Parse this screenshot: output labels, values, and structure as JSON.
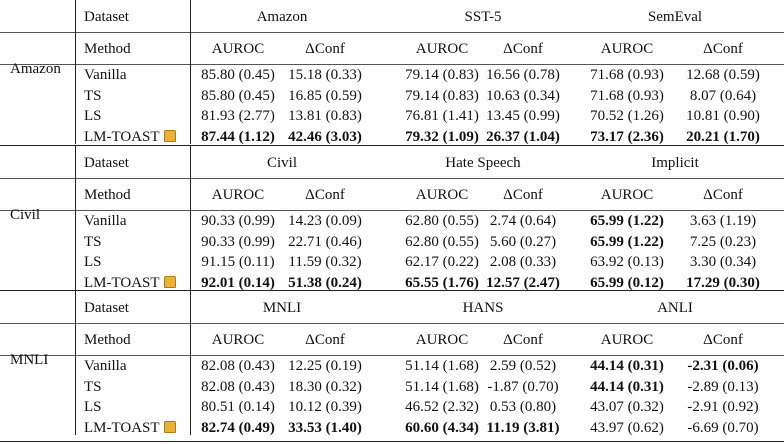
{
  "labels": {
    "dataset": "Dataset",
    "method": "Method",
    "auroc": "AUROC",
    "dconf": "ΔConf"
  },
  "groups": [
    {
      "name": "Amazon",
      "datasets": [
        "Amazon",
        "SST-5",
        "SemEval"
      ],
      "rows": [
        {
          "method": "Vanilla",
          "cells": [
            [
              "85.80 (0.45)",
              0
            ],
            [
              "15.18 (0.33)",
              0
            ],
            [
              "79.14 (0.83)",
              0
            ],
            [
              "16.56 (0.78)",
              0
            ],
            [
              "71.68 (0.93)",
              0
            ],
            [
              "12.68 (0.59)",
              0
            ]
          ]
        },
        {
          "method": "TS",
          "cells": [
            [
              "85.80 (0.45)",
              0
            ],
            [
              "16.85 (0.59)",
              0
            ],
            [
              "79.14 (0.83)",
              0
            ],
            [
              "10.63 (0.34)",
              0
            ],
            [
              "71.68 (0.93)",
              0
            ],
            [
              "8.07 (0.64)",
              0
            ]
          ]
        },
        {
          "method": "LS",
          "cells": [
            [
              "81.93 (2.77)",
              0
            ],
            [
              "13.81 (0.83)",
              0
            ],
            [
              "76.81 (1.41)",
              0
            ],
            [
              "13.45 (0.99)",
              0
            ],
            [
              "70.52 (1.26)",
              0
            ],
            [
              "10.81 (0.90)",
              0
            ]
          ]
        },
        {
          "method": "LM-TOAST",
          "icon": "toast-icon",
          "cells": [
            [
              "87.44 (1.12)",
              1
            ],
            [
              "42.46 (3.03)",
              1
            ],
            [
              "79.32 (1.09)",
              1
            ],
            [
              "26.37 (1.04)",
              1
            ],
            [
              "73.17 (2.36)",
              1
            ],
            [
              "20.21 (1.70)",
              1
            ]
          ]
        }
      ]
    },
    {
      "name": "Civil",
      "datasets": [
        "Civil",
        "Hate Speech",
        "Implicit"
      ],
      "rows": [
        {
          "method": "Vanilla",
          "cells": [
            [
              "90.33 (0.99)",
              0
            ],
            [
              "14.23 (0.09)",
              0
            ],
            [
              "62.80 (0.55)",
              0
            ],
            [
              "2.74 (0.64)",
              0
            ],
            [
              "65.99 (1.22)",
              1
            ],
            [
              "3.63 (1.19)",
              0
            ]
          ]
        },
        {
          "method": "TS",
          "cells": [
            [
              "90.33 (0.99)",
              0
            ],
            [
              "22.71 (0.46)",
              0
            ],
            [
              "62.80 (0.55)",
              0
            ],
            [
              "5.60 (0.27)",
              0
            ],
            [
              "65.99 (1.22)",
              1
            ],
            [
              "7.25 (0.23)",
              0
            ]
          ]
        },
        {
          "method": "LS",
          "cells": [
            [
              "91.15 (0.11)",
              0
            ],
            [
              "11.59 (0.32)",
              0
            ],
            [
              "62.17 (0.22)",
              0
            ],
            [
              "2.08 (0.33)",
              0
            ],
            [
              "63.92 (0.13)",
              0
            ],
            [
              "3.30 (0.34)",
              0
            ]
          ]
        },
        {
          "method": "LM-TOAST",
          "icon": "toast-icon",
          "cells": [
            [
              "92.01 (0.14)",
              1
            ],
            [
              "51.38 (0.24)",
              1
            ],
            [
              "65.55 (1.76)",
              1
            ],
            [
              "12.57 (2.47)",
              1
            ],
            [
              "65.99 (0.12)",
              1
            ],
            [
              "17.29 (0.30)",
              1
            ]
          ]
        }
      ]
    },
    {
      "name": "MNLI",
      "datasets": [
        "MNLI",
        "HANS",
        "ANLI"
      ],
      "rows": [
        {
          "method": "Vanilla",
          "cells": [
            [
              "82.08 (0.43)",
              0
            ],
            [
              "12.25 (0.19)",
              0
            ],
            [
              "51.14 (1.68)",
              0
            ],
            [
              "2.59 (0.52)",
              0
            ],
            [
              "44.14 (0.31)",
              1
            ],
            [
              "-2.31 (0.06)",
              1
            ]
          ]
        },
        {
          "method": "TS",
          "cells": [
            [
              "82.08 (0.43)",
              0
            ],
            [
              "18.30 (0.32)",
              0
            ],
            [
              "51.14 (1.68)",
              0
            ],
            [
              "-1.87 (0.70)",
              0
            ],
            [
              "44.14 (0.31)",
              1
            ],
            [
              "-2.89 (0.13)",
              0
            ]
          ]
        },
        {
          "method": "LS",
          "cells": [
            [
              "80.51 (0.14)",
              0
            ],
            [
              "10.12 (0.39)",
              0
            ],
            [
              "46.52 (2.32)",
              0
            ],
            [
              "0.53 (0.80)",
              0
            ],
            [
              "43.07 (0.32)",
              0
            ],
            [
              "-2.91 (0.92)",
              0
            ]
          ]
        },
        {
          "method": "LM-TOAST",
          "icon": "toast-icon",
          "cells": [
            [
              "82.74 (0.49)",
              1
            ],
            [
              "33.53 (1.40)",
              1
            ],
            [
              "60.60 (4.34)",
              1
            ],
            [
              "11.19 (3.81)",
              1
            ],
            [
              "43.97 (0.62)",
              0
            ],
            [
              "-6.69 (0.70)",
              0
            ]
          ]
        }
      ]
    }
  ]
}
